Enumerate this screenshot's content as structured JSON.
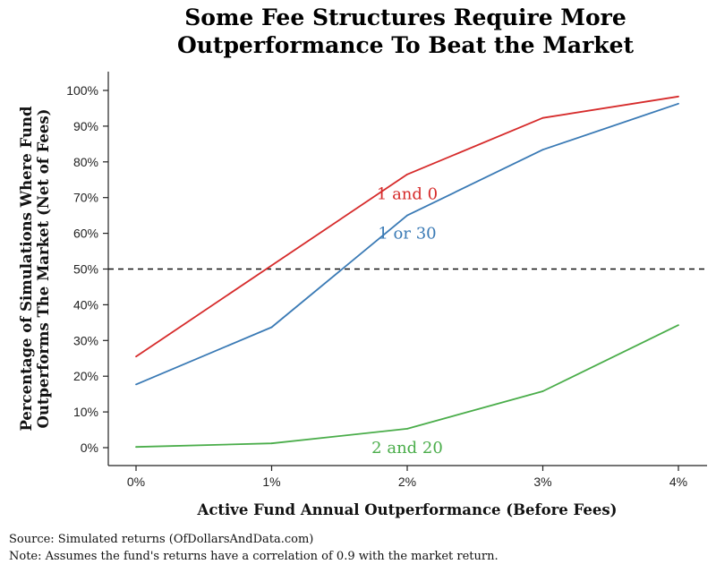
{
  "chart_data": {
    "type": "line",
    "title_lines": [
      "Some Fee Structures Require More",
      "Outperformance To Beat the Market"
    ],
    "xlabel": "Active Fund Annual Outperformance (Before Fees)",
    "ylabel_lines": [
      "Percentage of Simulations Where Fund",
      "Outperforms The Market (Net of Fees)"
    ],
    "x": [
      0,
      1,
      2,
      3,
      4
    ],
    "x_tick_labels": [
      "0%",
      "1%",
      "2%",
      "3%",
      "4%"
    ],
    "y_ticks": [
      0,
      10,
      20,
      30,
      40,
      50,
      60,
      70,
      80,
      90,
      100
    ],
    "y_tick_labels": [
      "0%",
      "10%",
      "20%",
      "30%",
      "40%",
      "50%",
      "60%",
      "70%",
      "80%",
      "90%",
      "100%"
    ],
    "xlim": [
      0,
      4
    ],
    "ylim": [
      0,
      100
    ],
    "grid": false,
    "reference_line": {
      "y": 50,
      "style": "dashed"
    },
    "series": [
      {
        "name": "1 and 0",
        "color": "#d62b2b",
        "values": [
          25.5,
          51,
          76.5,
          92.3,
          98.3
        ],
        "label_at": {
          "x": 2.0,
          "y": 71
        }
      },
      {
        "name": "1 or 30",
        "color": "#3a7ab5",
        "values": [
          17.7,
          33.7,
          65,
          83.4,
          96.3
        ],
        "label_at": {
          "x": 2.0,
          "y": 60
        }
      },
      {
        "name": "2 and 20",
        "color": "#4aad4a",
        "values": [
          0.2,
          1.2,
          5.3,
          15.8,
          34.3
        ],
        "label_at": {
          "x": 2.0,
          "y": 0
        }
      }
    ]
  },
  "footnote": {
    "source": "Source:  Simulated returns (OfDollarsAndData.com)",
    "note": "Note:  Assumes the fund's returns have a correlation of 0.9 with the market return."
  }
}
